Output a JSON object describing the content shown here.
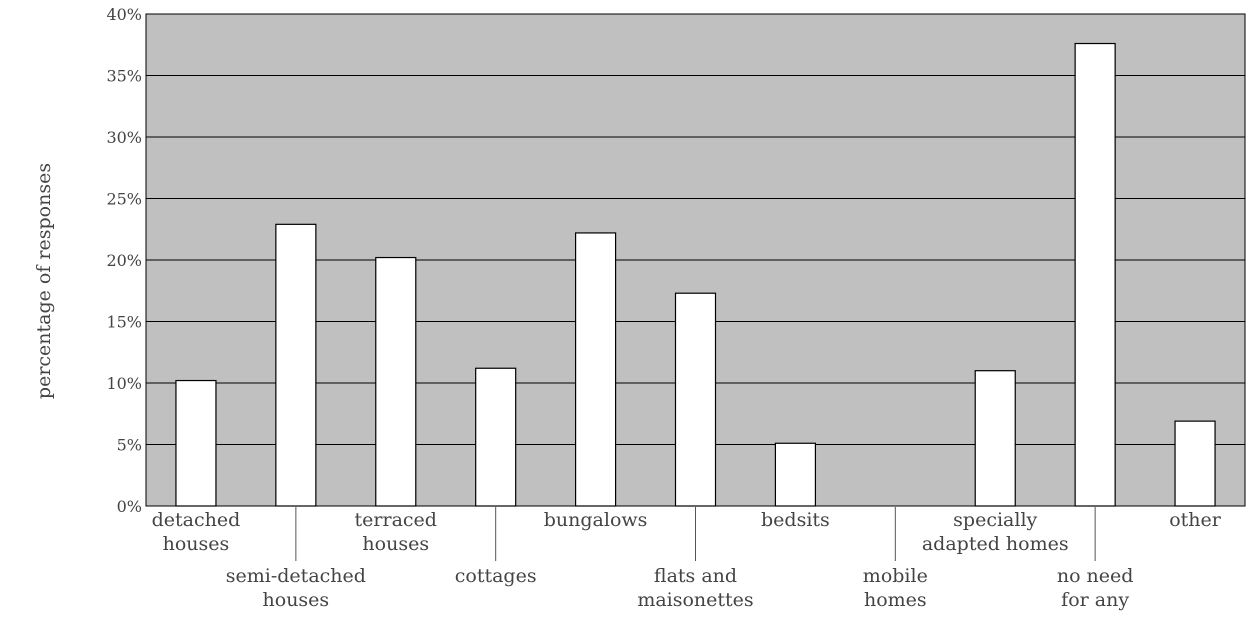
{
  "chart_data": {
    "type": "bar",
    "title": "",
    "xlabel": "",
    "ylabel": "percentage of responses",
    "ylim": [
      0,
      40
    ],
    "yticks": [
      "0%",
      "5%",
      "10%",
      "15%",
      "20%",
      "25%",
      "30%",
      "35%",
      "40%"
    ],
    "grid": true,
    "legend": "none",
    "categories": [
      "detached houses",
      "semi-detached houses",
      "terraced houses",
      "cottages",
      "bungalows",
      "flats and maisonettes",
      "bedsits",
      "mobile homes",
      "specially adapted homes",
      "no need for any",
      "other"
    ],
    "category_label_lines": [
      [
        "detached",
        "houses"
      ],
      [
        "semi-detached",
        "houses"
      ],
      [
        "terraced",
        "houses"
      ],
      [
        "cottages"
      ],
      [
        "bungalows"
      ],
      [
        "flats and",
        "maisonettes"
      ],
      [
        "bedsits"
      ],
      [
        "mobile",
        "homes"
      ],
      [
        "specially",
        "adapted homes"
      ],
      [
        "no need",
        "for any"
      ],
      [
        "other"
      ]
    ],
    "values": [
      10.2,
      22.9,
      20.2,
      11.2,
      22.2,
      17.3,
      5.1,
      0,
      11.0,
      37.6,
      6.9
    ],
    "colors": {
      "plot_background": "#c0c0c0",
      "bar_fill": "#ffffff",
      "bar_stroke": "#000000",
      "gridline": "#000000",
      "text": "#444444"
    }
  }
}
